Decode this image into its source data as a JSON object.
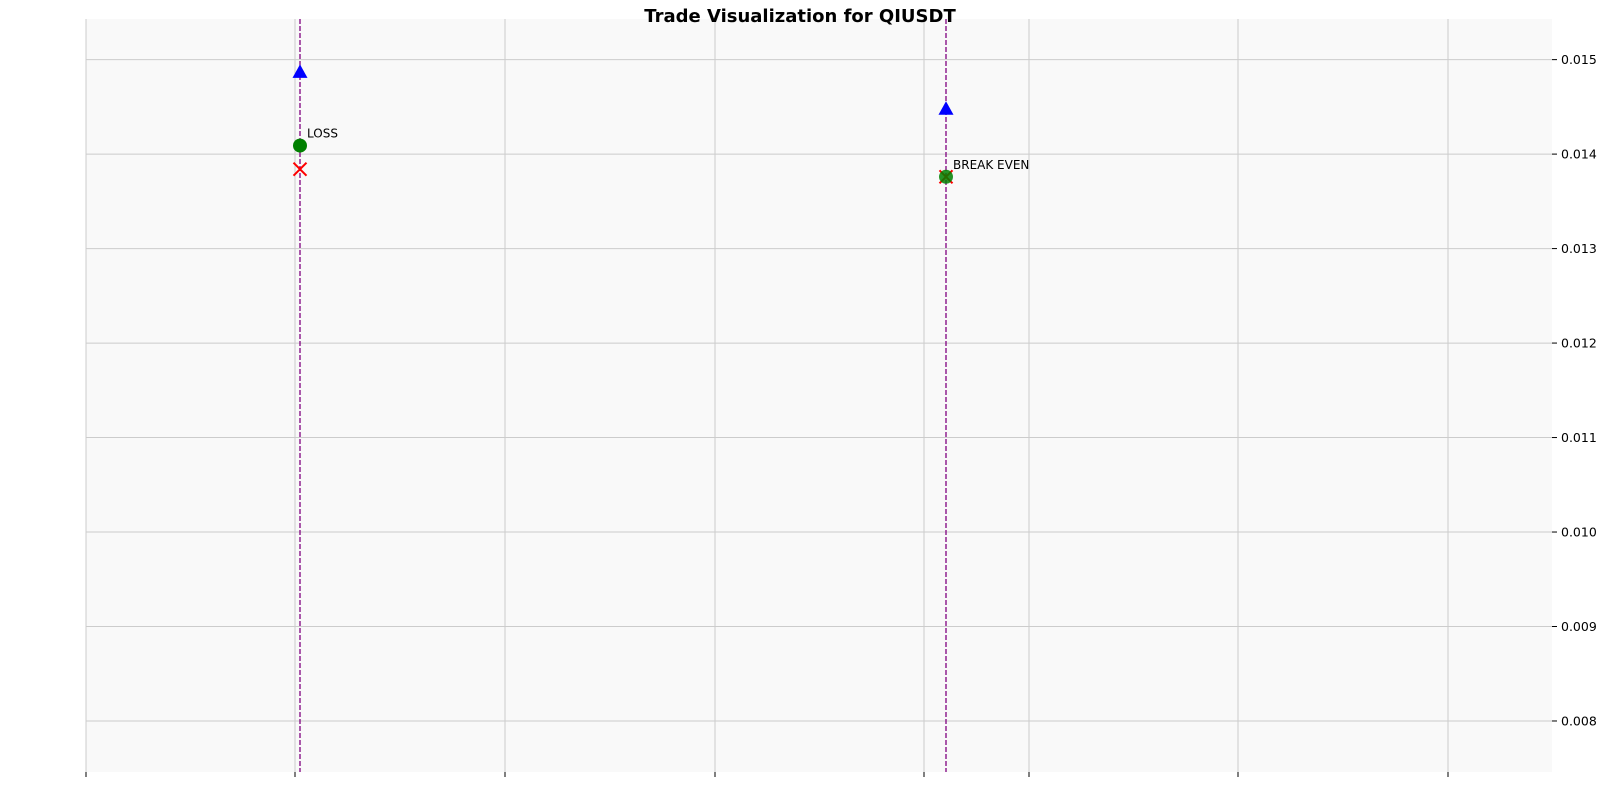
{
  "chart_data": {
    "type": "scatter",
    "title": "Trade Visualization for QIUSDT",
    "xlabel": "",
    "ylabel": "",
    "ylim": [
      0.00746,
      0.01543
    ],
    "y_ticks": [
      0.008,
      0.009,
      0.01,
      0.011,
      0.012,
      0.013,
      0.014,
      0.015
    ],
    "y_tick_labels": [
      "0.008",
      "0.009",
      "0.010",
      "0.011",
      "0.012",
      "0.013",
      "0.014",
      "0.015"
    ],
    "y_axis_position": "right",
    "x_tick_labels_visible": false,
    "grid": true,
    "legend": "none",
    "colors": {
      "background": "#f9f9f9",
      "grid": "#cccccc",
      "entry_line": "#800080",
      "triangle": "#0000ff",
      "circle": "#008000",
      "cross": "#ff0000"
    },
    "trades": [
      {
        "triangle": 0.01487,
        "circle": 0.01409,
        "cross": 0.01384,
        "label": "LOSS"
      },
      {
        "triangle": 0.01448,
        "circle": 0.01376,
        "cross": 0.01376,
        "label": "BREAK EVEN"
      }
    ]
  }
}
